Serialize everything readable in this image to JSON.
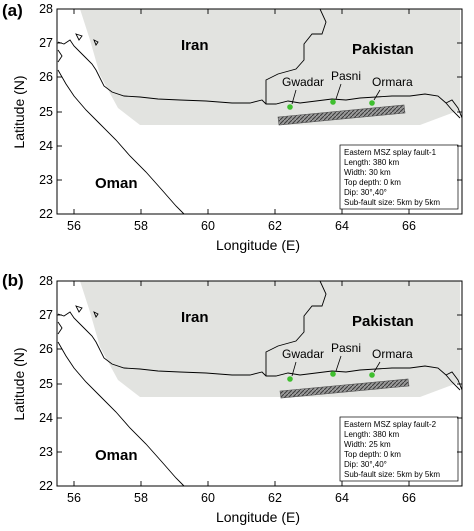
{
  "panels": [
    {
      "tag": "(a)",
      "info": [
        "Eastern MSZ splay fault-1",
        "Length: 380 km",
        "Width: 30 km",
        "Top depth: 0 km",
        "Dip: 30°,40°",
        "Sub-fault size: 5km by 5km"
      ]
    },
    {
      "tag": "(b)",
      "info": [
        "Eastern MSZ splay fault-2",
        "Length: 380 km",
        "Width: 25 km",
        "Top depth: 0 km",
        "Dip: 30°,40°",
        "Sub-fault size: 5km by 5km"
      ]
    }
  ],
  "axes": {
    "xlabel": "Longitude (E)",
    "ylabel": "Latitude (N)",
    "xticks": [
      "56",
      "58",
      "60",
      "62",
      "64",
      "66"
    ],
    "yticks": [
      "22",
      "23",
      "24",
      "25",
      "26",
      "27",
      "28"
    ],
    "xlim": [
      55.5,
      67.5
    ],
    "ylim": [
      22,
      28
    ]
  },
  "regions": {
    "iran": "Iran",
    "pakistan": "Pakistan",
    "oman": "Oman"
  },
  "cities": [
    {
      "name": "Gwadar",
      "lon": 62.3,
      "lat": 25.12
    },
    {
      "name": "Pasni",
      "lon": 63.47,
      "lat": 25.26
    },
    {
      "name": "Ormara",
      "lon": 64.63,
      "lat": 25.21
    }
  ],
  "colors": {
    "domain_fill": "#e2e3e0",
    "fault_fill": "#8c8c8c",
    "city_marker": "#3fbf2f"
  }
}
